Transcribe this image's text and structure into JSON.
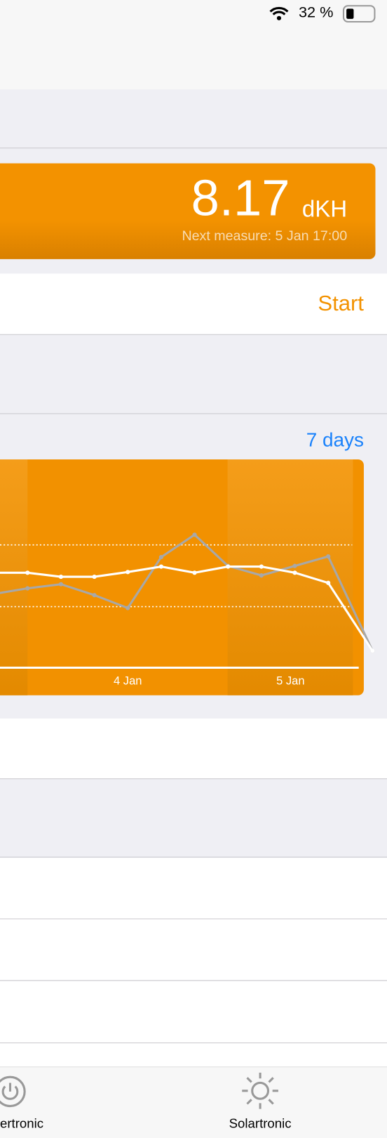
{
  "status_bar": {
    "battery": "32 %"
  },
  "measurement": {
    "value": "8.17",
    "unit": "dKH",
    "next": "Next measure: 5 Jan 17:00"
  },
  "actions": {
    "start": "Start",
    "range": "7 days"
  },
  "chart_data": {
    "type": "line",
    "categories": [
      null,
      null,
      null,
      "4 Jan",
      null,
      null,
      null,
      null,
      "5 Jan",
      null,
      null
    ],
    "series": [
      {
        "color": "#ffffff",
        "values": [
          12.0,
          11.4,
          11.4,
          12.1,
          12.9,
          12.0,
          12.9,
          12.9,
          12.0,
          10.5,
          0.5
        ]
      },
      {
        "color": "#a8a8a8",
        "values": [
          9.7,
          10.3,
          8.7,
          6.8,
          14.3,
          17.6,
          13.0,
          11.6,
          13.0,
          14.4,
          0.5
        ]
      }
    ],
    "reference_lines": [
      16.1,
      7.0
    ],
    "ylim": [
      -2,
      28.7
    ]
  },
  "tab_bar": {
    "left": "ertronic",
    "right": "Solartronic"
  }
}
